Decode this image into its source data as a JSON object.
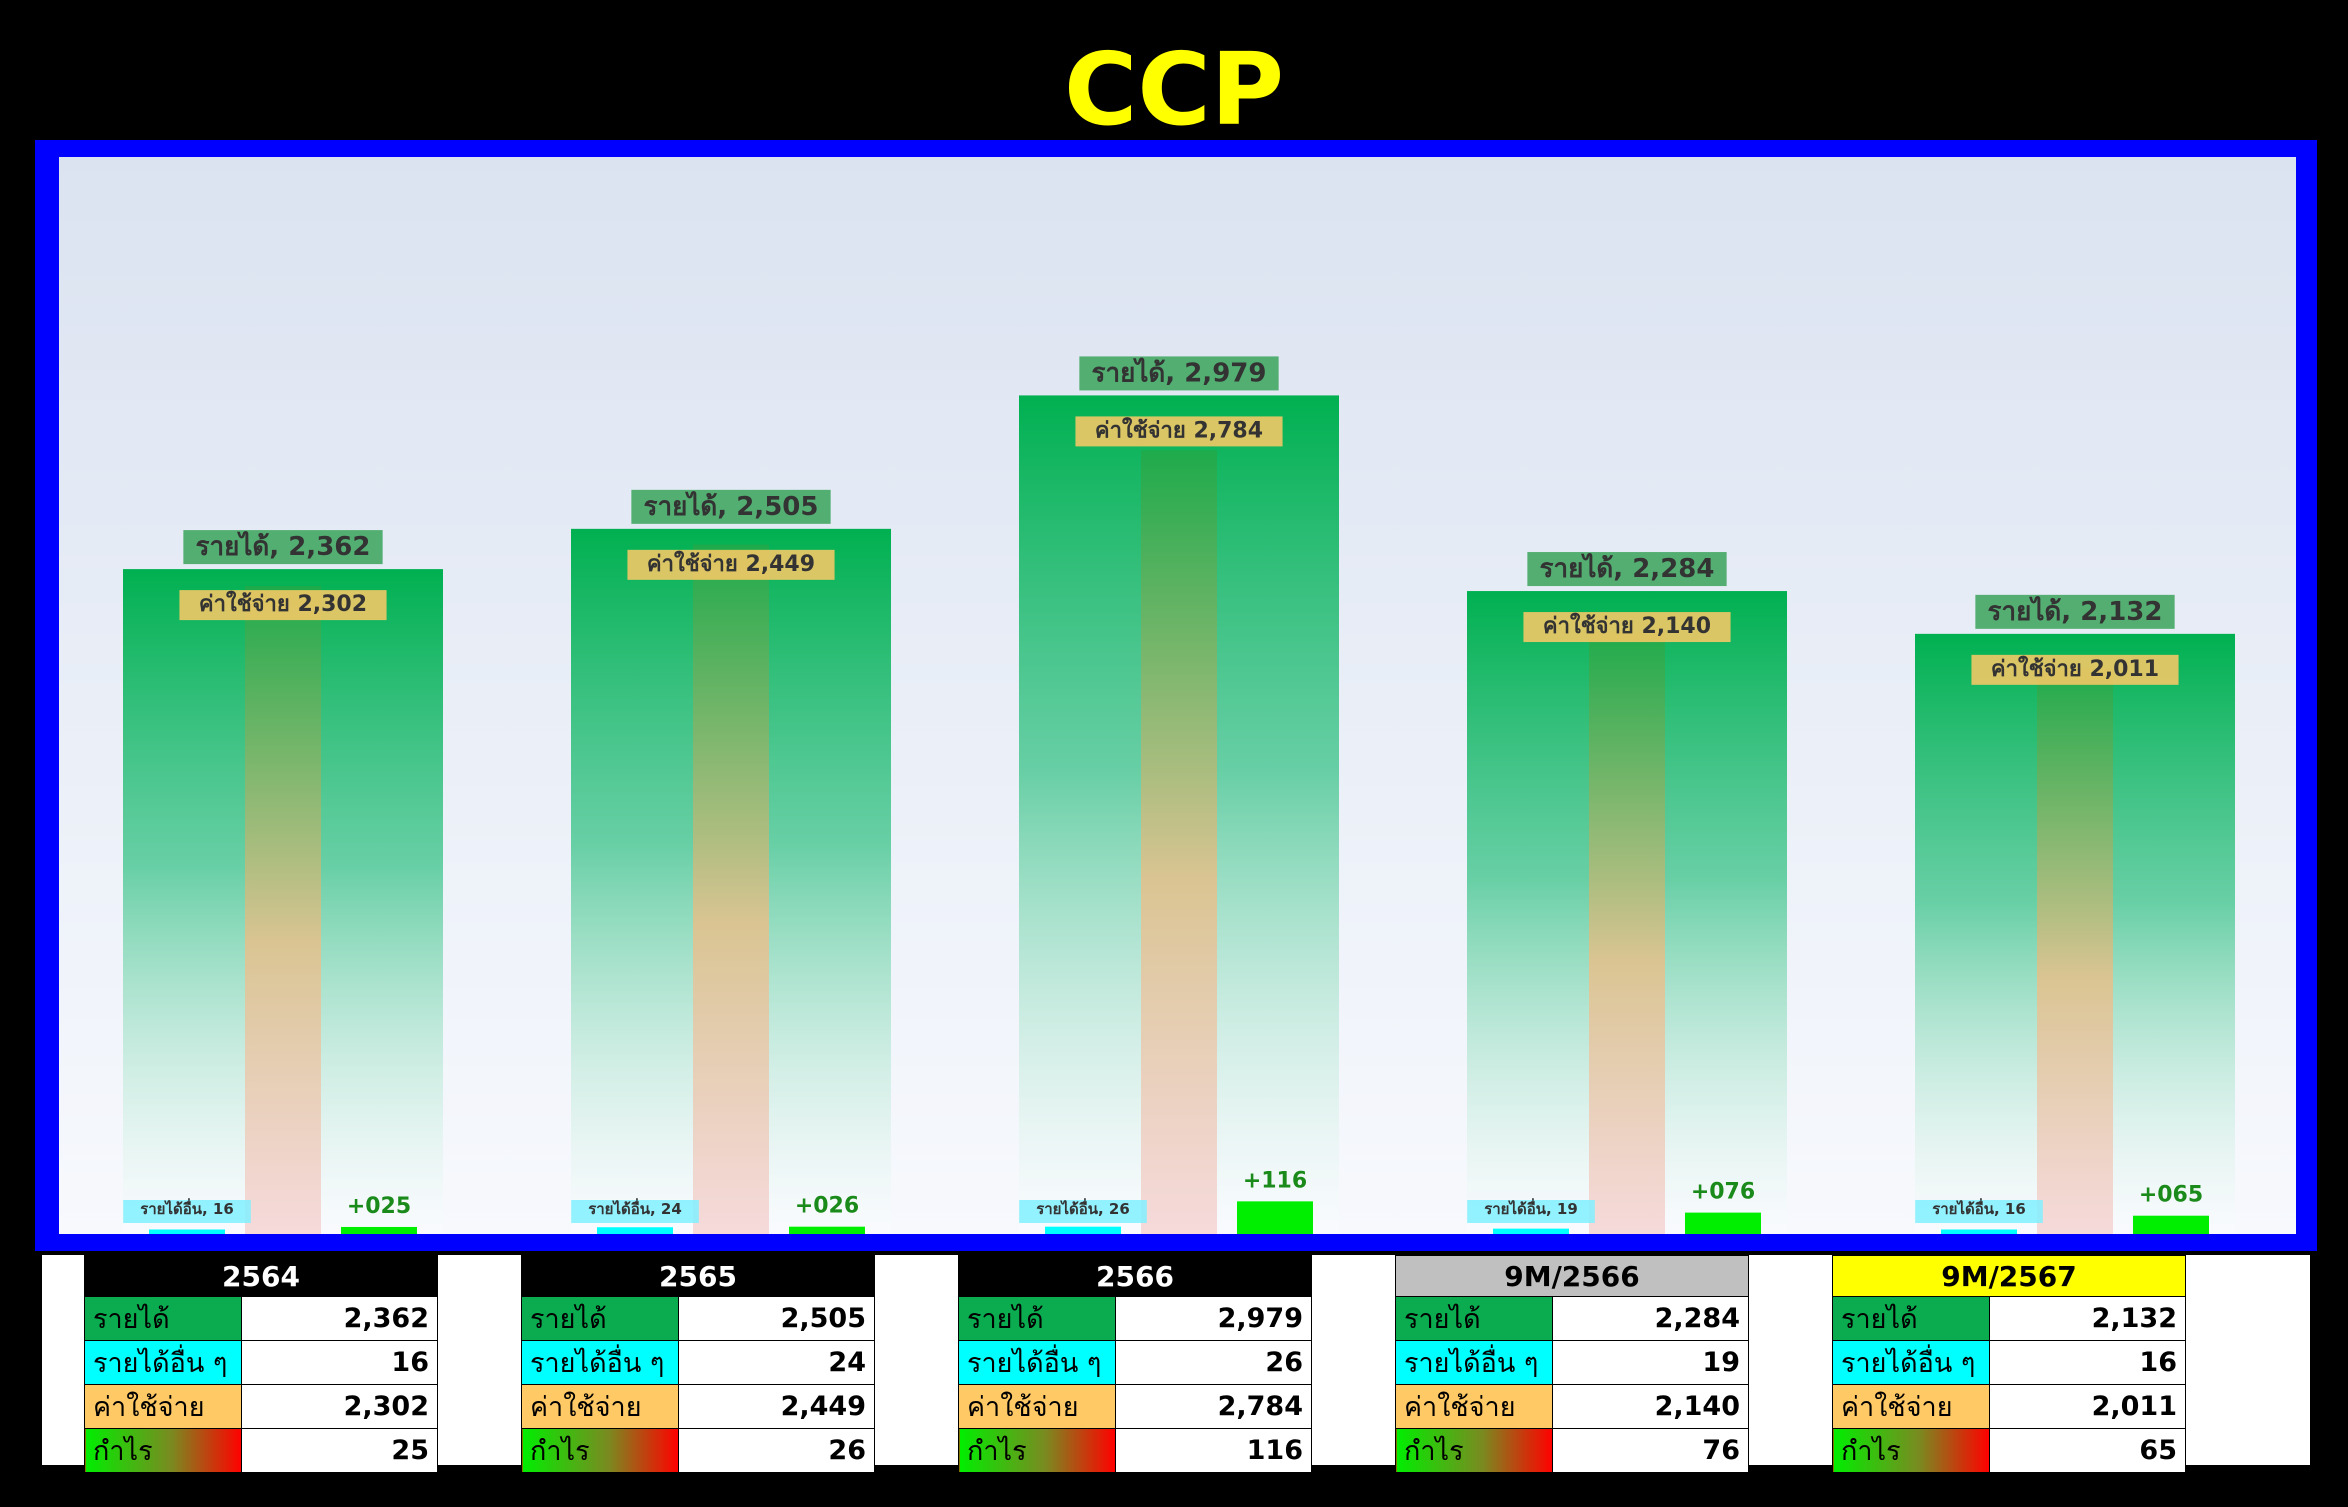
{
  "title": "CCP",
  "chart_data": {
    "type": "bar",
    "categories": [
      "2564",
      "2565",
      "2566",
      "9M/2566",
      "9M/2567"
    ],
    "series": [
      {
        "name": "รายได้",
        "values": [
          2362,
          2505,
          2979,
          2284,
          2132
        ]
      },
      {
        "name": "รายได้อื่น",
        "values": [
          16,
          24,
          26,
          19,
          16
        ]
      },
      {
        "name": "ค่าใช้จ่าย",
        "values": [
          2302,
          2449,
          2784,
          2140,
          2011
        ]
      },
      {
        "name": "กำไร",
        "values": [
          25,
          26,
          116,
          76,
          65
        ]
      }
    ],
    "data_labels": {
      "revenue": [
        "รายได้, 2,362",
        "รายได้, 2,505",
        "รายได้, 2,979",
        "รายได้, 2,284",
        "รายได้, 2,132"
      ],
      "expense": [
        "ค่าใช้จ่าย 2,302",
        "ค่าใช้จ่าย 2,449",
        "ค่าใช้จ่าย 2,784",
        "ค่าใช้จ่าย 2,140",
        "ค่าใช้จ่าย 2,011"
      ],
      "other": [
        "รายได้อื่น, 16",
        "รายได้อื่น, 24",
        "รายได้อื่น, 26",
        "รายได้อื่น, 19",
        "รายได้อื่น, 16"
      ],
      "profit": [
        "+025",
        "+026",
        "+116",
        "+076",
        "+065"
      ]
    },
    "ylim": [
      0,
      3300
    ],
    "grid": false,
    "legend": "none"
  },
  "colors": {
    "title": "#ffff00",
    "frame": "#0000ff",
    "revenue": "#0bab4f",
    "other": "#00ffff",
    "expense": "#ffc966",
    "profit": "#00ee00",
    "profit_label": "#1a8a1a"
  },
  "tables": [
    {
      "header": "2564",
      "header_bg": "#000000",
      "header_color": "#ffffff",
      "rows": [
        {
          "label": "รายได้",
          "value": "2,362"
        },
        {
          "label": "รายได้อื่น ๆ",
          "value": "16"
        },
        {
          "label": "ค่าใช้จ่าย",
          "value": "2,302"
        },
        {
          "label": "กำไร",
          "value": "25"
        }
      ]
    },
    {
      "header": "2565",
      "header_bg": "#000000",
      "header_color": "#ffffff",
      "rows": [
        {
          "label": "รายได้",
          "value": "2,505"
        },
        {
          "label": "รายได้อื่น ๆ",
          "value": "24"
        },
        {
          "label": "ค่าใช้จ่าย",
          "value": "2,449"
        },
        {
          "label": "กำไร",
          "value": "26"
        }
      ]
    },
    {
      "header": "2566",
      "header_bg": "#000000",
      "header_color": "#ffffff",
      "rows": [
        {
          "label": "รายได้",
          "value": "2,979"
        },
        {
          "label": "รายได้อื่น ๆ",
          "value": "26"
        },
        {
          "label": "ค่าใช้จ่าย",
          "value": "2,784"
        },
        {
          "label": "กำไร",
          "value": "116"
        }
      ]
    },
    {
      "header": "9M/2566",
      "header_bg": "#c0c0c0",
      "header_color": "#000000",
      "rows": [
        {
          "label": "รายได้",
          "value": "2,284"
        },
        {
          "label": "รายได้อื่น ๆ",
          "value": "19"
        },
        {
          "label": "ค่าใช้จ่าย",
          "value": "2,140"
        },
        {
          "label": "กำไร",
          "value": "76"
        }
      ]
    },
    {
      "header": "9M/2567",
      "header_bg": "#ffff00",
      "header_color": "#000000",
      "rows": [
        {
          "label": "รายได้",
          "value": "2,132"
        },
        {
          "label": "รายได้อื่น ๆ",
          "value": "16"
        },
        {
          "label": "ค่าใช้จ่าย",
          "value": "2,011"
        },
        {
          "label": "กำไร",
          "value": "65"
        }
      ]
    }
  ]
}
